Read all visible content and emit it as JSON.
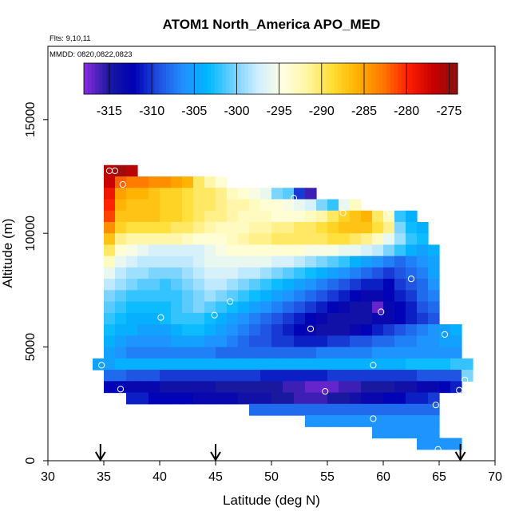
{
  "chart_data": {
    "type": "heatmap",
    "title": "ATOM1 North_America APO_MED",
    "subtitle": "Flts: 9,10,11",
    "annotation": "MMDD: 0820,0822,0823",
    "xlabel": "Latitude (deg N)",
    "ylabel": "Altitude (m)",
    "xlim": [
      30,
      70
    ],
    "ylim": [
      0,
      18000
    ],
    "x_ticks": [
      "30",
      "35",
      "40",
      "45",
      "50",
      "55",
      "60",
      "65",
      "70"
    ],
    "y_ticks": [
      "0",
      "5000",
      "10000",
      "15000"
    ],
    "grid": false,
    "colorbar": {
      "position": "top",
      "range": [
        -318,
        -274
      ],
      "ticks": [
        "-315",
        "-310",
        "-305",
        "-300",
        "-295",
        "-290",
        "-285",
        "-280",
        "-275"
      ],
      "colors": [
        "#8a2be2",
        "#1a1aa0",
        "#0000b4",
        "#2050e0",
        "#2090ff",
        "#00b8ff",
        "#70d0ff",
        "#d0eeff",
        "#ffffe0",
        "#fff5a0",
        "#ffdd30",
        "#ffb000",
        "#ff7800",
        "#ff2000",
        "#c80000",
        "#8b1010"
      ]
    },
    "x_bin": 1.0,
    "y_bin": 500,
    "rows": [
      {
        "alt": 12500,
        "start": 35.0,
        "values": [
          -276,
          -275,
          -276
        ]
      },
      {
        "alt": 12000,
        "start": 35.0,
        "values": [
          -277,
          -282,
          -283,
          -283,
          -284,
          -284,
          -285,
          -286,
          -290,
          -292,
          -294
        ]
      },
      {
        "alt": 11500,
        "start": 35.0,
        "values": [
          -279,
          -285,
          -286,
          -286,
          -287,
          -288,
          -288,
          -289,
          -290,
          -290,
          -291,
          -293,
          -294,
          -295,
          -296,
          -300,
          -301,
          -310,
          -316
        ]
      },
      {
        "alt": 11000,
        "start": 35.0,
        "values": [
          -280,
          -286,
          -287,
          -287,
          -287,
          -288,
          -288,
          -289,
          -290,
          -290,
          -291,
          -292,
          -292,
          -293,
          -294,
          -294,
          -295,
          -296,
          -297,
          -300,
          -302,
          -296,
          -293
        ]
      },
      {
        "alt": 10500,
        "start": 35.0,
        "values": [
          -281,
          -287,
          -287,
          -287,
          -287,
          -288,
          -288,
          -289,
          -290,
          -291,
          -291,
          -292,
          -293,
          -293,
          -293,
          -294,
          -294,
          -294,
          -293,
          -292,
          -290,
          -288,
          -287,
          -286,
          -290,
          -293,
          -302,
          -304
        ]
      },
      {
        "alt": 10000,
        "start": 35.0,
        "values": [
          -284,
          -288,
          -289,
          -289,
          -289,
          -289,
          -290,
          -290,
          -291,
          -292,
          -293,
          -293,
          -293,
          -292,
          -292,
          -291,
          -291,
          -290,
          -290,
          -289,
          -288,
          -287,
          -287,
          -287,
          -289,
          -291,
          -300,
          -303,
          -304
        ]
      },
      {
        "alt": 9500,
        "start": 35.0,
        "values": [
          -287,
          -291,
          -292,
          -292,
          -292,
          -292,
          -292,
          -293,
          -294,
          -294,
          -294,
          -293,
          -292,
          -291,
          -291,
          -290,
          -290,
          -290,
          -290,
          -290,
          -289,
          -289,
          -290,
          -291,
          -293,
          -296,
          -299,
          -302,
          -303
        ]
      },
      {
        "alt": 9000,
        "start": 35.0,
        "values": [
          -290,
          -294,
          -295,
          -296,
          -297,
          -297,
          -297,
          -297,
          -297,
          -296,
          -295,
          -294,
          -294,
          -294,
          -294,
          -294,
          -294,
          -294,
          -295,
          -295,
          -295,
          -296,
          -296,
          -297,
          -298,
          -300,
          -302,
          -304,
          -305,
          -304
        ]
      },
      {
        "alt": 8500,
        "start": 35.0,
        "values": [
          -293,
          -296,
          -297,
          -298,
          -298,
          -298,
          -298,
          -298,
          -297,
          -296,
          -296,
          -296,
          -296,
          -296,
          -296,
          -297,
          -297,
          -298,
          -299,
          -300,
          -301,
          -302,
          -304,
          -305,
          -306,
          -307,
          -308,
          -307,
          -306,
          -305
        ]
      },
      {
        "alt": 8000,
        "start": 35.0,
        "values": [
          -296,
          -298,
          -299,
          -299,
          -300,
          -300,
          -300,
          -299,
          -298,
          -297,
          -297,
          -297,
          -298,
          -298,
          -299,
          -300,
          -301,
          -302,
          -303,
          -304,
          -305,
          -306,
          -307,
          -308,
          -309,
          -310,
          -309,
          -308,
          -307,
          -305
        ]
      },
      {
        "alt": 7500,
        "start": 35.0,
        "values": [
          -298,
          -299,
          -300,
          -301,
          -301,
          -302,
          -301,
          -300,
          -299,
          -298,
          -298,
          -299,
          -300,
          -301,
          -302,
          -303,
          -304,
          -305,
          -306,
          -307,
          -308,
          -309,
          -310,
          -311,
          -311,
          -312,
          -310,
          -309,
          -308,
          -306
        ]
      },
      {
        "alt": 7000,
        "start": 35.0,
        "values": [
          -300,
          -301,
          -302,
          -302,
          -302,
          -302,
          -302,
          -301,
          -300,
          -299,
          -300,
          -301,
          -302,
          -303,
          -304,
          -305,
          -306,
          -307,
          -308,
          -309,
          -310,
          -311,
          -312,
          -313,
          -313,
          -312,
          -311,
          -310,
          -308,
          -307
        ]
      },
      {
        "alt": 6500,
        "start": 35.0,
        "values": [
          -301,
          -302,
          -303,
          -303,
          -303,
          -303,
          -302,
          -301,
          -300,
          -301,
          -302,
          -303,
          -304,
          -305,
          -306,
          -307,
          -308,
          -309,
          -310,
          -311,
          -312,
          -313,
          -314,
          -314,
          -317,
          -313,
          -312,
          -311,
          -309,
          -308
        ]
      },
      {
        "alt": 6000,
        "start": 35.0,
        "values": [
          -302,
          -303,
          -304,
          -304,
          -304,
          -303,
          -302,
          -302,
          -302,
          -303,
          -304,
          -305,
          -306,
          -307,
          -308,
          -309,
          -310,
          -311,
          -312,
          -313,
          -314,
          -314,
          -314,
          -314,
          -313,
          -313,
          -312,
          -311,
          -310,
          -309
        ]
      },
      {
        "alt": 5500,
        "start": 35.0,
        "values": [
          -303,
          -304,
          -304,
          -305,
          -305,
          -305,
          -304,
          -303,
          -303,
          -304,
          -305,
          -306,
          -307,
          -308,
          -309,
          -310,
          -311,
          -312,
          -313,
          -314,
          -314,
          -314,
          -313,
          -312,
          -311,
          -310,
          -309,
          -308,
          -307,
          -306,
          -305,
          -304
        ]
      },
      {
        "alt": 5000,
        "start": 35.0,
        "values": [
          -304,
          -305,
          -306,
          -306,
          -306,
          -306,
          -305,
          -305,
          -305,
          -306,
          -306,
          -307,
          -308,
          -309,
          -309,
          -310,
          -310,
          -311,
          -311,
          -311,
          -310,
          -310,
          -309,
          -309,
          -308,
          -308,
          -307,
          -307,
          -306,
          -306,
          -305,
          -305
        ]
      },
      {
        "alt": 4500,
        "start": 35.0,
        "values": [
          -305,
          -306,
          -307,
          -307,
          -307,
          -307,
          -307,
          -307,
          -307,
          -307,
          -308,
          -308,
          -308,
          -308,
          -308,
          -308,
          -308,
          -308,
          -308,
          -307,
          -307,
          -307,
          -307,
          -307,
          -306,
          -306,
          -306,
          -306,
          -306,
          -306,
          -306,
          -306
        ]
      },
      {
        "alt": 4000,
        "start": 34.0,
        "values": [
          -305,
          -305,
          -304,
          -304,
          -304,
          -304,
          -304,
          -304,
          -304,
          -304,
          -304,
          -304,
          -304,
          -304,
          -304,
          -304,
          -304,
          -304,
          -304,
          -304,
          -304,
          -304,
          -304,
          -304,
          -304,
          -304,
          -304,
          -304,
          -303,
          -303,
          -303,
          -303,
          -302,
          -302
        ]
      },
      {
        "alt": 3500,
        "start": 35.0,
        "values": [
          -308,
          -308,
          -309,
          -309,
          -309,
          -310,
          -310,
          -310,
          -310,
          -310,
          -310,
          -310,
          -310,
          -310,
          -311,
          -311,
          -311,
          -311,
          -311,
          -311,
          -310,
          -310,
          -310,
          -310,
          -310,
          -310,
          -310,
          -310,
          -309,
          -309,
          -309,
          -309,
          -300
        ]
      },
      {
        "alt": 3000,
        "start": 35.0,
        "values": [
          -312,
          -312,
          -313,
          -313,
          -313,
          -314,
          -314,
          -314,
          -314,
          -314,
          -315,
          -315,
          -315,
          -315,
          -315,
          -315,
          -316,
          -316,
          -317,
          -317,
          -317,
          -316,
          -316,
          -315,
          -315,
          -315,
          -314,
          -314,
          -313,
          -313,
          -312,
          -311
        ]
      },
      {
        "alt": 2500,
        "start": 37.0,
        "values": [
          -311,
          -311,
          -312,
          -312,
          -312,
          -312,
          -313,
          -313,
          -313,
          -313,
          -314,
          -314,
          -314,
          -315,
          -315,
          -316,
          -316,
          -316,
          -315,
          -315,
          -314,
          -313,
          -313,
          -312,
          -312,
          -311,
          -311,
          -310
        ]
      },
      {
        "alt": 2000,
        "start": 48.0,
        "values": [
          -308,
          -308,
          -308,
          -308,
          -308,
          -308,
          -308,
          -308,
          -308,
          -308,
          -308,
          -308,
          -308,
          -308,
          -308,
          -308,
          -308
        ]
      },
      {
        "alt": 1500,
        "start": 53.0,
        "values": [
          -306,
          -306,
          -306,
          -306,
          -306,
          -306,
          -306,
          -306,
          -306,
          -306,
          -306,
          -306
        ]
      },
      {
        "alt": 1000,
        "start": 59.0,
        "values": [
          -306,
          -306,
          -306,
          -306,
          -306,
          -306
        ]
      },
      {
        "alt": 500,
        "start": 63.0,
        "values": [
          -306,
          -306,
          -306,
          -306
        ]
      }
    ],
    "sample_points": [
      {
        "lat": 35.5,
        "alt": 12750
      },
      {
        "lat": 36.0,
        "alt": 12750
      },
      {
        "lat": 36.7,
        "alt": 12150
      },
      {
        "lat": 52.0,
        "alt": 11550
      },
      {
        "lat": 56.4,
        "alt": 10900
      },
      {
        "lat": 60.6,
        "alt": 10950
      },
      {
        "lat": 62.5,
        "alt": 8000
      },
      {
        "lat": 65.8,
        "alt": 8000
      },
      {
        "lat": 46.3,
        "alt": 7000
      },
      {
        "lat": 59.8,
        "alt": 6550
      },
      {
        "lat": 40.1,
        "alt": 6300
      },
      {
        "lat": 44.9,
        "alt": 6400
      },
      {
        "lat": 53.5,
        "alt": 5800
      },
      {
        "lat": 65.5,
        "alt": 5550
      },
      {
        "lat": 34.8,
        "alt": 4200
      },
      {
        "lat": 59.1,
        "alt": 4200
      },
      {
        "lat": 67.3,
        "alt": 3550
      },
      {
        "lat": 36.5,
        "alt": 3150
      },
      {
        "lat": 54.8,
        "alt": 3050
      },
      {
        "lat": 66.8,
        "alt": 3100
      },
      {
        "lat": 64.7,
        "alt": 2450
      },
      {
        "lat": 59.1,
        "alt": 1850
      },
      {
        "lat": 64.9,
        "alt": 500
      }
    ],
    "arrow_markers": [
      34.7,
      45.0,
      66.9
    ]
  }
}
